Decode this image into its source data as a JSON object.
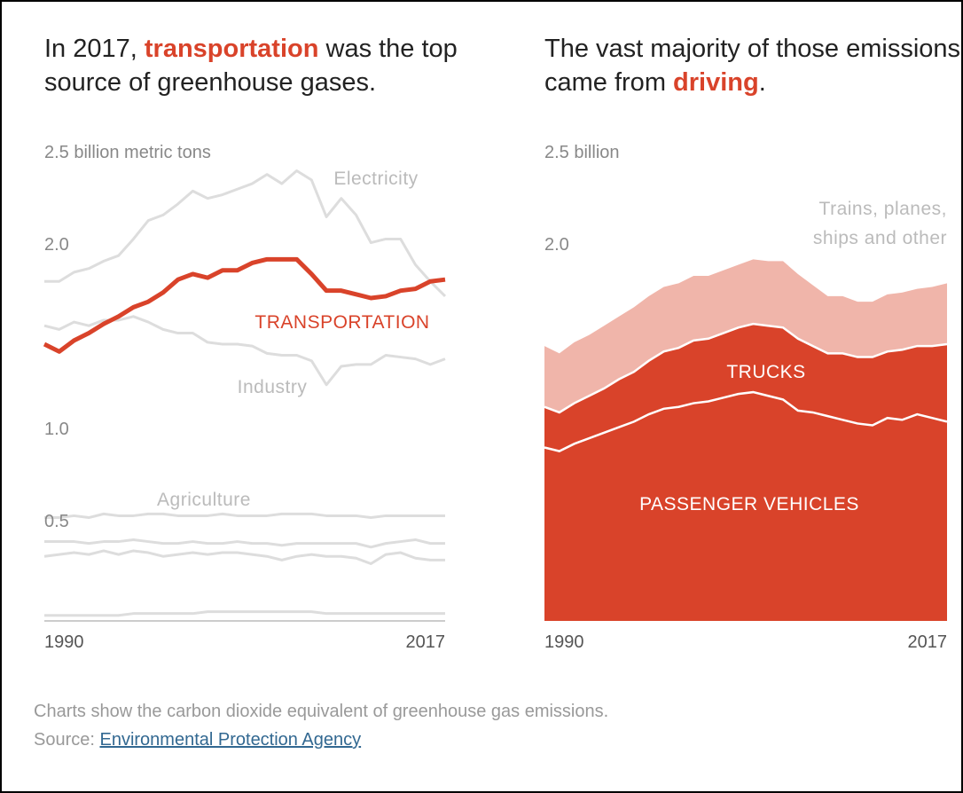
{
  "chart_data": [
    {
      "type": "line",
      "title_parts": [
        "In 2017, ",
        "transportation",
        " was the top source of greenhouse gases."
      ],
      "highlight_color": "#d9432a",
      "x": [
        1990,
        1991,
        1992,
        1993,
        1994,
        1995,
        1996,
        1997,
        1998,
        1999,
        2000,
        2001,
        2002,
        2003,
        2004,
        2005,
        2006,
        2007,
        2008,
        2009,
        2010,
        2011,
        2012,
        2013,
        2014,
        2015,
        2016,
        2017
      ],
      "xlim": [
        1990,
        2017
      ],
      "xticks": [
        1990,
        2017
      ],
      "ylim": [
        0,
        2.5
      ],
      "yticks": [
        {
          "value": 2.5,
          "label": "2.5 billion metric tons"
        },
        {
          "value": 2,
          "label": "2.0"
        },
        {
          "value": 1,
          "label": "1.0"
        },
        {
          "value": 0.5,
          "label": "0.5"
        }
      ],
      "grid": false,
      "series": [
        {
          "name": "Electricity",
          "color": "#dddddd",
          "values": [
            1.84,
            1.84,
            1.89,
            1.91,
            1.95,
            1.98,
            2.07,
            2.17,
            2.2,
            2.26,
            2.33,
            2.29,
            2.31,
            2.34,
            2.37,
            2.42,
            2.37,
            2.44,
            2.39,
            2.19,
            2.29,
            2.2,
            2.05,
            2.07,
            2.07,
            1.93,
            1.84,
            1.76
          ]
        },
        {
          "name": "Industry",
          "color": "#dddddd",
          "values": [
            1.6,
            1.58,
            1.62,
            1.6,
            1.63,
            1.63,
            1.65,
            1.62,
            1.58,
            1.56,
            1.56,
            1.51,
            1.5,
            1.5,
            1.49,
            1.45,
            1.44,
            1.44,
            1.41,
            1.28,
            1.38,
            1.39,
            1.39,
            1.44,
            1.43,
            1.42,
            1.39,
            1.42
          ]
        },
        {
          "name": "Agriculture",
          "color": "#dddddd",
          "values": [
            0.56,
            0.56,
            0.57,
            0.56,
            0.58,
            0.57,
            0.57,
            0.58,
            0.58,
            0.57,
            0.57,
            0.57,
            0.58,
            0.57,
            0.57,
            0.57,
            0.58,
            0.58,
            0.58,
            0.57,
            0.57,
            0.57,
            0.56,
            0.57,
            0.57,
            0.57,
            0.57,
            0.57
          ]
        },
        {
          "color": "#dddddd",
          "values": [
            0.43,
            0.43,
            0.43,
            0.42,
            0.43,
            0.43,
            0.44,
            0.43,
            0.42,
            0.42,
            0.43,
            0.42,
            0.42,
            0.43,
            0.42,
            0.42,
            0.41,
            0.42,
            0.42,
            0.42,
            0.42,
            0.42,
            0.4,
            0.42,
            0.43,
            0.44,
            0.42,
            0.42
          ]
        },
        {
          "color": "#dddddd",
          "values": [
            0.35,
            0.36,
            0.37,
            0.36,
            0.38,
            0.36,
            0.38,
            0.37,
            0.35,
            0.36,
            0.37,
            0.36,
            0.37,
            0.37,
            0.36,
            0.35,
            0.33,
            0.35,
            0.36,
            0.35,
            0.35,
            0.34,
            0.31,
            0.36,
            0.37,
            0.34,
            0.33,
            0.33
          ]
        },
        {
          "color": "#dddddd",
          "values": [
            0.03,
            0.03,
            0.03,
            0.03,
            0.03,
            0.03,
            0.04,
            0.04,
            0.04,
            0.04,
            0.04,
            0.05,
            0.05,
            0.05,
            0.05,
            0.05,
            0.05,
            0.05,
            0.05,
            0.04,
            0.04,
            0.04,
            0.04,
            0.04,
            0.04,
            0.04,
            0.04,
            0.04
          ]
        },
        {
          "name": "TRANSPORTATION",
          "color": "#d9432a",
          "line_width": 5,
          "values": [
            1.5,
            1.46,
            1.52,
            1.56,
            1.61,
            1.65,
            1.7,
            1.73,
            1.78,
            1.85,
            1.88,
            1.86,
            1.9,
            1.9,
            1.94,
            1.96,
            1.96,
            1.96,
            1.88,
            1.79,
            1.79,
            1.77,
            1.75,
            1.76,
            1.79,
            1.8,
            1.84,
            1.85
          ]
        }
      ]
    },
    {
      "type": "stacked_area",
      "title_parts": [
        "The vast majority of those emissions came from ",
        "driving",
        "."
      ],
      "highlight_color": "#d9432a",
      "x": [
        1990,
        1991,
        1992,
        1993,
        1994,
        1995,
        1996,
        1997,
        1998,
        1999,
        2000,
        2001,
        2002,
        2003,
        2004,
        2005,
        2006,
        2007,
        2008,
        2009,
        2010,
        2011,
        2012,
        2013,
        2014,
        2015,
        2016,
        2017
      ],
      "xlim": [
        1990,
        2017
      ],
      "xticks": [
        1990,
        2017
      ],
      "ylim": [
        0,
        2.5
      ],
      "yticks": [
        {
          "value": 2.5,
          "label": "2.5 billion"
        },
        {
          "value": 2,
          "label": "2.0"
        }
      ],
      "grid": false,
      "series": [
        {
          "name": "PASSENGER VEHICLES",
          "color": "#d9432a",
          "values": [
            0.94,
            0.92,
            0.96,
            0.99,
            1.02,
            1.05,
            1.08,
            1.12,
            1.15,
            1.16,
            1.18,
            1.19,
            1.21,
            1.23,
            1.24,
            1.22,
            1.2,
            1.14,
            1.13,
            1.11,
            1.09,
            1.07,
            1.06,
            1.1,
            1.09,
            1.12,
            1.1,
            1.08
          ]
        },
        {
          "name": "TRUCKS",
          "color": "#d9432a",
          "values": [
            0.22,
            0.21,
            0.22,
            0.23,
            0.24,
            0.26,
            0.27,
            0.29,
            0.31,
            0.32,
            0.34,
            0.34,
            0.35,
            0.36,
            0.37,
            0.38,
            0.39,
            0.39,
            0.36,
            0.34,
            0.36,
            0.36,
            0.37,
            0.36,
            0.38,
            0.37,
            0.39,
            0.42
          ]
        },
        {
          "name": "Trains, planes, ships and other",
          "color": "#f0b5aa",
          "values": [
            0.33,
            0.32,
            0.33,
            0.33,
            0.34,
            0.34,
            0.35,
            0.35,
            0.35,
            0.35,
            0.35,
            0.34,
            0.34,
            0.34,
            0.35,
            0.35,
            0.36,
            0.35,
            0.33,
            0.31,
            0.31,
            0.3,
            0.3,
            0.31,
            0.31,
            0.31,
            0.32,
            0.33
          ]
        }
      ]
    }
  ],
  "footer": {
    "note": "Charts show the carbon dioxide equivalent of greenhouse gas emissions.",
    "source_prefix": "Source: ",
    "source_link": "Environmental Protection Agency"
  }
}
